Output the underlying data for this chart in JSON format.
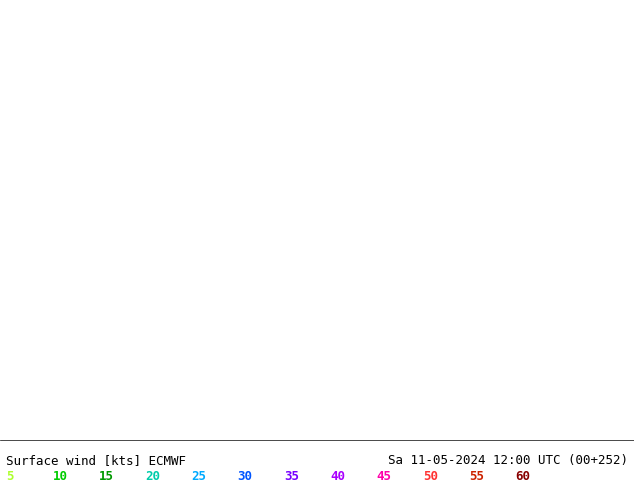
{
  "title_left": "Surface wind [kts] ECMWF",
  "title_right": "Sa 11-05-2024 12:00 UTC (00+252)",
  "legend_values": [
    "5",
    "10",
    "15",
    "20",
    "25",
    "30",
    "35",
    "40",
    "45",
    "50",
    "55",
    "60"
  ],
  "legend_colors": [
    "#adff2f",
    "#00ff00",
    "#00e600",
    "#00cc00",
    "#00ffff",
    "#00bfff",
    "#0080ff",
    "#0000ff",
    "#8000ff",
    "#ff00ff",
    "#ff0080",
    "#ff0000"
  ],
  "colormap_colors": [
    "#00bfff",
    "#00ffff",
    "#adff2f",
    "#ffff00",
    "#ffd700",
    "#ffaa00",
    "#ff6600",
    "#ff0000"
  ],
  "colormap_bounds": [
    0,
    5,
    10,
    15,
    20,
    25,
    30,
    35,
    40
  ],
  "fig_width": 6.34,
  "fig_height": 4.9,
  "dpi": 100,
  "map_bg_color": "#ffff00",
  "bottom_bar_color": "#000000",
  "bottom_bar_bg": "#ffffff",
  "font_color_left": "#000000",
  "font_color_right": "#000000",
  "font_size_label": 9,
  "font_size_legend": 9
}
